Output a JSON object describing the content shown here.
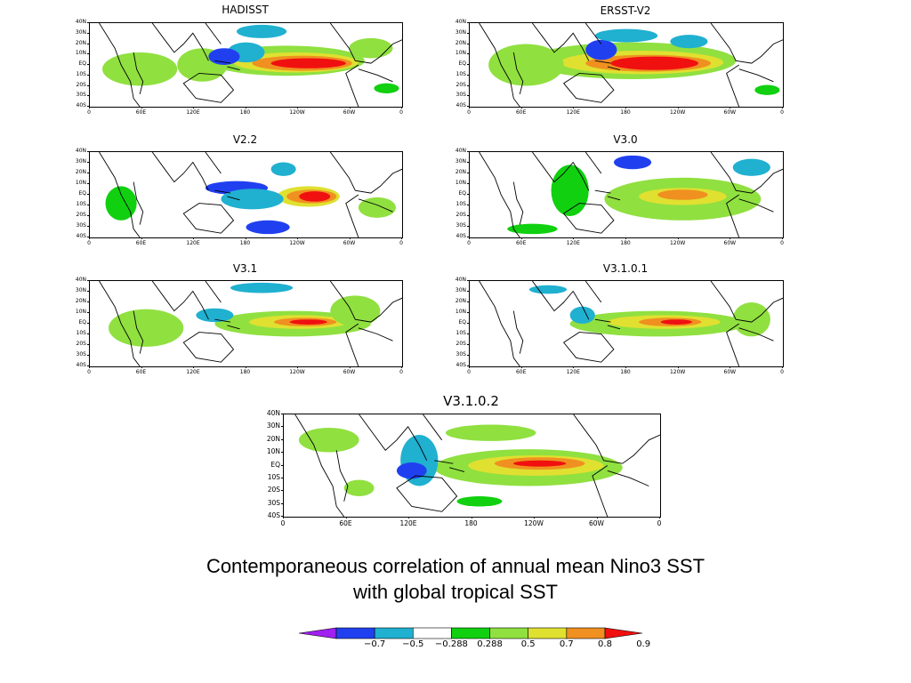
{
  "panels": [
    {
      "id": "hadisst",
      "title": "HADISST"
    },
    {
      "id": "ersst",
      "title": "ERSST-V2"
    },
    {
      "id": "v22",
      "title": "V2.2"
    },
    {
      "id": "v30",
      "title": "V3.0"
    },
    {
      "id": "v31",
      "title": "V3.1"
    },
    {
      "id": "v3101",
      "title": "V3.1.0.1"
    },
    {
      "id": "v3102",
      "title": "V3.1.0.2"
    }
  ],
  "axes": {
    "lat_labels": [
      "40N",
      "30N",
      "20N",
      "10N",
      "EQ",
      "10S",
      "20S",
      "30S",
      "40S"
    ],
    "lon_labels": [
      "0",
      "60E",
      "120E",
      "180",
      "120W",
      "60W",
      "0"
    ]
  },
  "caption": {
    "line1": "Contemporaneous correlation of annual mean Nino3 SST",
    "line2": "with global tropical SST"
  },
  "colorbar": {
    "labels": [
      "−0.7",
      "−0.5",
      "−0.288",
      "0.288",
      "0.5",
      "0.7",
      "0.8",
      "0.9"
    ],
    "colors": [
      "#a020f0",
      "#2040f0",
      "#20b0d0",
      "#ffffff",
      "#10d010",
      "#90e040",
      "#e0e030",
      "#f09020",
      "#f01010"
    ]
  }
}
